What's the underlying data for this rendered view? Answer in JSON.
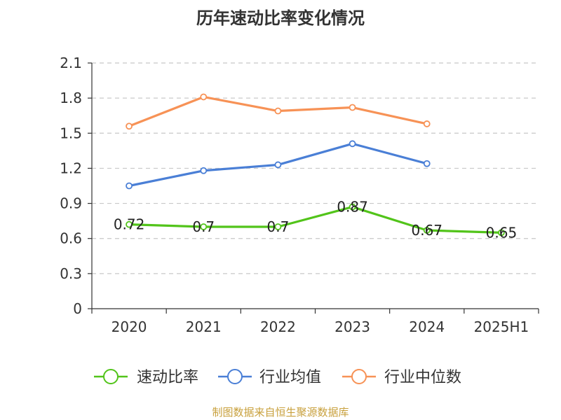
{
  "chart_data": {
    "type": "line",
    "title": "历年速动比率变化情况",
    "categories": [
      "2020",
      "2021",
      "2022",
      "2023",
      "2024",
      "2025H1"
    ],
    "ylim": [
      0,
      2.1
    ],
    "yticks": [
      "0",
      "0.3",
      "0.6",
      "0.9",
      "1.2",
      "1.5",
      "1.8",
      "2.1"
    ],
    "grid": true,
    "legend_position": "bottom",
    "series": [
      {
        "name": "速动比率",
        "color": "#52c41a",
        "values": [
          0.72,
          0.7,
          0.7,
          0.87,
          0.67,
          0.65
        ],
        "labels": [
          "0.72",
          "0.7",
          "0.7",
          "0.87",
          "0.67",
          "0.65"
        ]
      },
      {
        "name": "行业均值",
        "color": "#4a7fd6",
        "values": [
          1.05,
          1.18,
          1.23,
          1.41,
          1.24,
          null
        ]
      },
      {
        "name": "行业中位数",
        "color": "#f79256",
        "values": [
          1.56,
          1.81,
          1.69,
          1.72,
          1.58,
          null
        ]
      }
    ]
  },
  "source": "制图数据来自恒生聚源数据库"
}
